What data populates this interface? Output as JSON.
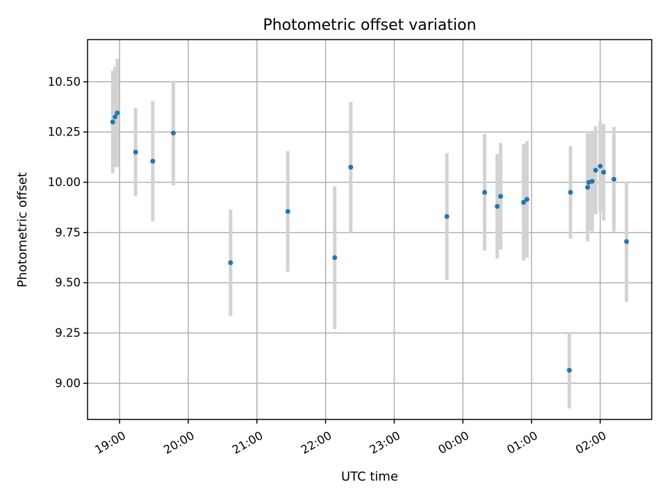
{
  "chart_data": {
    "type": "scatter",
    "title": "Photometric offset variation",
    "xlabel": "UTC time",
    "ylabel": "Photometric offset",
    "x_is_time": true,
    "x_ticks": [
      {
        "t": "19:00",
        "label": "19:00"
      },
      {
        "t": "20:00",
        "label": "20:00"
      },
      {
        "t": "21:00",
        "label": "21:00"
      },
      {
        "t": "22:00",
        "label": "22:00"
      },
      {
        "t": "23:00",
        "label": "23:00"
      },
      {
        "t": "24:00",
        "label": "00:00"
      },
      {
        "t": "25:00",
        "label": "01:00"
      },
      {
        "t": "26:00",
        "label": "02:00"
      }
    ],
    "y_ticks": [
      {
        "v": 9.0,
        "label": "9.00"
      },
      {
        "v": 9.25,
        "label": "9.25"
      },
      {
        "v": 9.5,
        "label": "9.50"
      },
      {
        "v": 9.75,
        "label": "9.75"
      },
      {
        "v": 10.0,
        "label": "10.00"
      },
      {
        "v": 10.25,
        "label": "10.25"
      },
      {
        "v": 10.5,
        "label": "10.50"
      }
    ],
    "xlim": [
      "18:32",
      "26:45"
    ],
    "ylim": [
      8.82,
      10.71
    ],
    "grid": true,
    "point_color": "#1f77b4",
    "errorbar_color": "#d3d3d3",
    "points": [
      {
        "t": "18:54",
        "y": 10.3,
        "err": 0.255
      },
      {
        "t": "18:56",
        "y": 10.325,
        "err": 0.25
      },
      {
        "t": "18:58",
        "y": 10.345,
        "err": 0.27
      },
      {
        "t": "19:14",
        "y": 10.15,
        "err": 0.22
      },
      {
        "t": "19:29",
        "y": 10.105,
        "err": 0.3
      },
      {
        "t": "19:47",
        "y": 10.245,
        "err": 0.26
      },
      {
        "t": "20:37",
        "y": 9.6,
        "err": 0.265
      },
      {
        "t": "21:27",
        "y": 9.855,
        "err": 0.3
      },
      {
        "t": "22:08",
        "y": 9.625,
        "err": 0.355
      },
      {
        "t": "22:22",
        "y": 10.075,
        "err": 0.325
      },
      {
        "t": "23:46",
        "y": 9.83,
        "err": 0.315
      },
      {
        "t": "24:19",
        "y": 9.95,
        "err": 0.29
      },
      {
        "t": "24:30",
        "y": 9.88,
        "err": 0.26
      },
      {
        "t": "24:33",
        "y": 9.93,
        "err": 0.265
      },
      {
        "t": "24:53",
        "y": 9.9,
        "err": 0.29
      },
      {
        "t": "24:56",
        "y": 9.915,
        "err": 0.29
      },
      {
        "t": "25:33",
        "y": 9.065,
        "err": 0.19
      },
      {
        "t": "25:34",
        "y": 9.95,
        "err": 0.23
      },
      {
        "t": "25:49",
        "y": 9.975,
        "err": 0.27
      },
      {
        "t": "25:50",
        "y": 10.0,
        "err": 0.24
      },
      {
        "t": "25:53",
        "y": 10.005,
        "err": 0.25
      },
      {
        "t": "25:56",
        "y": 10.06,
        "err": 0.22
      },
      {
        "t": "26:00",
        "y": 10.08,
        "err": 0.225
      },
      {
        "t": "26:03",
        "y": 10.05,
        "err": 0.24
      },
      {
        "t": "26:12",
        "y": 10.015,
        "err": 0.26
      },
      {
        "t": "26:23",
        "y": 9.705,
        "err": 0.3
      }
    ]
  }
}
